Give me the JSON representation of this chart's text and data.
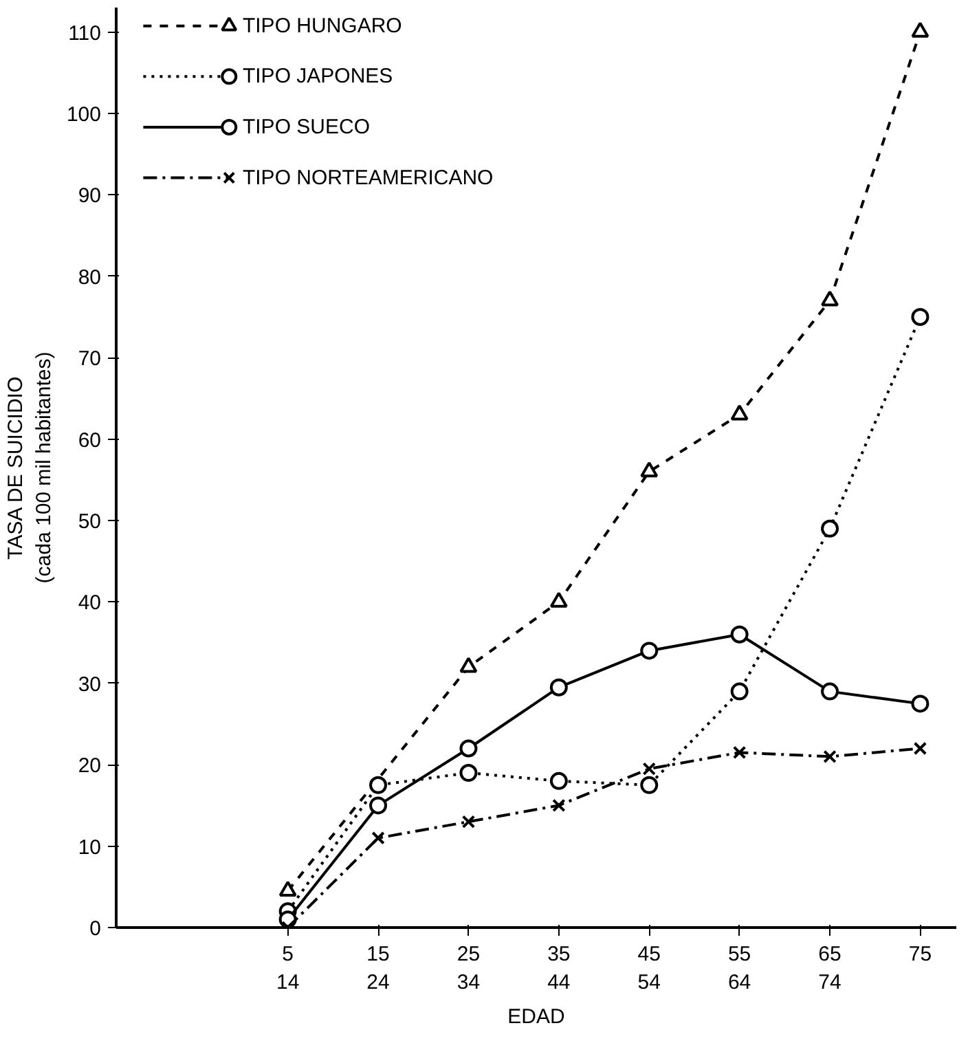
{
  "chart_data": {
    "type": "line",
    "categories": [
      "5\n14",
      "15\n24",
      "25\n34",
      "35\n44",
      "45\n54",
      "55\n64",
      "65\n74",
      "75"
    ],
    "xlabel": "EDAD",
    "ylabel": "TASA DE SUICIDIO\n(cada 100 mil habitantes)",
    "ylim": [
      0,
      113
    ],
    "yticks": [
      0,
      10,
      20,
      30,
      40,
      50,
      60,
      70,
      80,
      90,
      100,
      110
    ],
    "grid": false,
    "legend": "top left",
    "series": [
      {
        "name": "TIPO HUNGARO",
        "color": "#000000",
        "marker": "triangle",
        "line_style": "dashed",
        "values": [
          4.5,
          null,
          32,
          40,
          56,
          63,
          77,
          110
        ]
      },
      {
        "name": "TIPO JAPONES",
        "color": "#000000",
        "marker": "circle",
        "line_style": "dotted",
        "values": [
          2,
          17.5,
          19,
          18,
          17.5,
          29,
          49,
          75
        ]
      },
      {
        "name": "TIPO SUECO",
        "color": "#000000",
        "marker": "circle",
        "line_style": "solid",
        "values": [
          1,
          15,
          22,
          29.5,
          34,
          36,
          29,
          27.5
        ]
      },
      {
        "name": "TIPO NORTEAMERICANO",
        "color": "#000000",
        "marker": "cross",
        "line_style": "dashed",
        "values": [
          0,
          11,
          13,
          15,
          19.5,
          21.5,
          21,
          22
        ]
      }
    ]
  }
}
